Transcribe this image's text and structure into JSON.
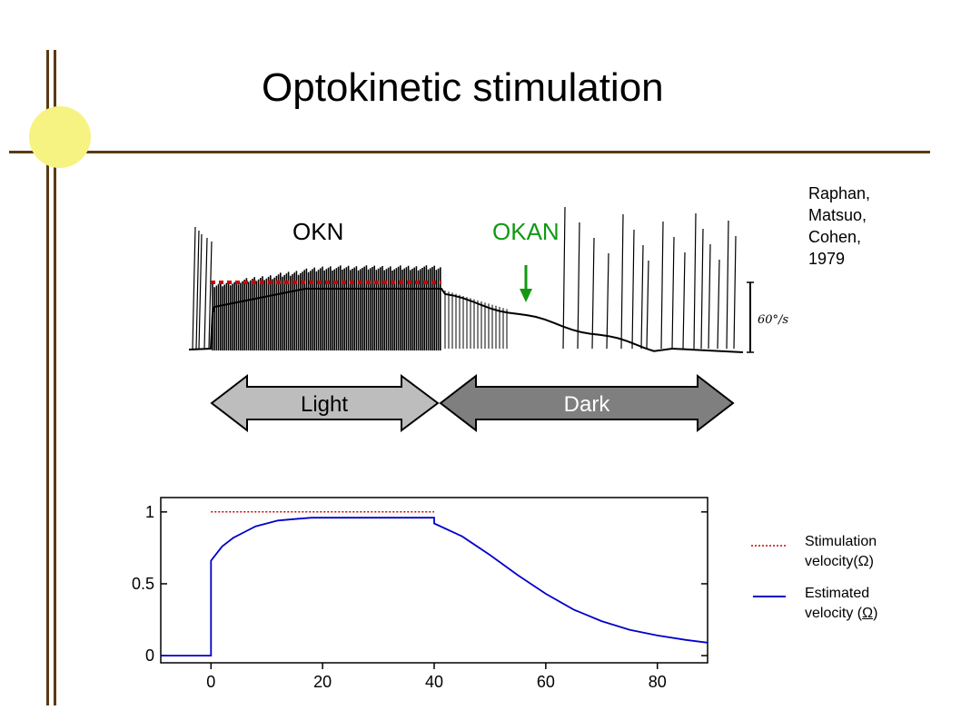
{
  "slide": {
    "title": "Optokinetic stimulation",
    "accent_color": "#5a3b13",
    "circle_color": "#f6f382"
  },
  "citation": {
    "lines": [
      "Raphan,",
      "Matsuo,",
      "Cohen,",
      "1979"
    ]
  },
  "recording": {
    "okn_label": "OKN",
    "okan_label": "OKAN",
    "okan_color": "#119911",
    "scale_label": "60°/s",
    "light_label": "Light",
    "dark_label": "Dark",
    "light_color": "#bdbdbd",
    "dark_color": "#7f7f7f"
  },
  "legend": {
    "stim_line1": "Stimulation",
    "stim_line2": "velocity(Ω)",
    "est_line1": "Estimated",
    "est_line2_pre": "velocity (",
    "est_line2_sym": "Ω",
    "est_line2_post": ")",
    "stim_color": "#cc0000",
    "est_color": "#0000cc"
  },
  "chart_data": {
    "type": "line",
    "xlim": [
      -9,
      89
    ],
    "ylim": [
      -0.05,
      1.1
    ],
    "xticks": [
      0,
      20,
      40,
      60,
      80
    ],
    "yticks": [
      0,
      0.5,
      1
    ],
    "ytick_labels": [
      "0",
      "0.5",
      "1"
    ],
    "grid": false,
    "series": [
      {
        "name": "Stimulation velocity(Ω)",
        "style": "dotted",
        "color": "#cc0000",
        "x": [
          0,
          40
        ],
        "y": [
          1.0,
          1.0
        ]
      },
      {
        "name": "Estimated velocity (Ω)",
        "style": "solid",
        "color": "#0000cc",
        "x": [
          -9,
          0,
          0,
          1,
          2,
          4,
          6,
          8,
          10,
          12,
          15,
          18,
          20,
          25,
          30,
          35,
          40,
          40,
          45,
          50,
          55,
          60,
          65,
          70,
          75,
          80,
          85,
          89
        ],
        "y": [
          0,
          0,
          0.66,
          0.71,
          0.76,
          0.82,
          0.86,
          0.9,
          0.92,
          0.94,
          0.95,
          0.96,
          0.96,
          0.96,
          0.96,
          0.96,
          0.96,
          0.92,
          0.83,
          0.7,
          0.56,
          0.43,
          0.32,
          0.24,
          0.18,
          0.14,
          0.11,
          0.09
        ]
      }
    ]
  }
}
